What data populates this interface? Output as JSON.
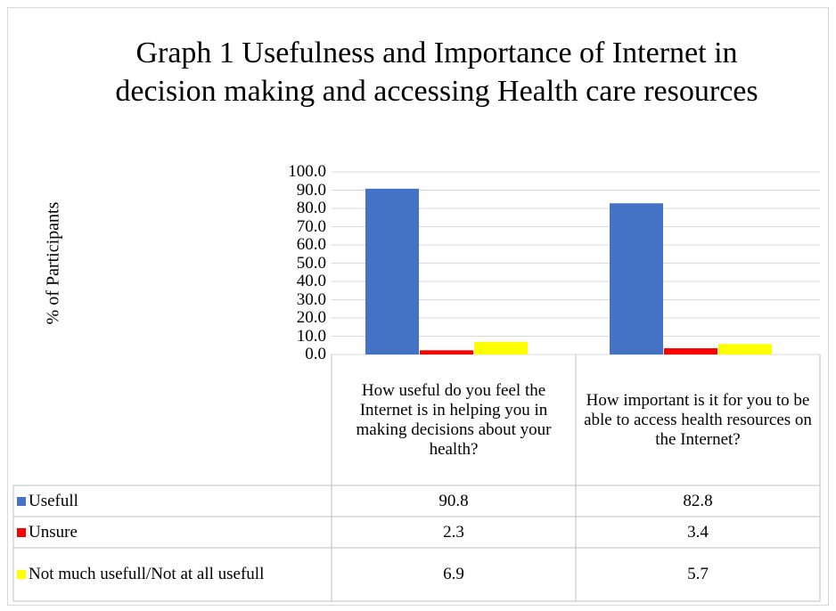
{
  "chart_data": {
    "type": "bar",
    "title": "Graph 1 Usefulness and Importance of Internet in decision making and accessing Health care resources",
    "y_label": "% of Participants",
    "categories": [
      "How useful do you feel the Internet is in helping you in making decisions about your health?",
      "How important is it for you to be able to access health resources on the Internet?"
    ],
    "series": [
      {
        "name": "Usefull",
        "color": "#4472c4",
        "values": [
          90.8,
          82.8
        ]
      },
      {
        "name": "Unsure",
        "color": "#ff0000",
        "values": [
          2.3,
          3.4
        ]
      },
      {
        "name": "Not much usefull/Not at all usefull",
        "color": "#ffff00",
        "values": [
          6.9,
          5.7
        ]
      }
    ],
    "ylim": [
      0,
      100
    ],
    "yticks": [
      {
        "value": 0,
        "label": "0.0"
      },
      {
        "value": 10,
        "label": "10.0"
      },
      {
        "value": 20,
        "label": "20.0"
      },
      {
        "value": 30,
        "label": "30.0"
      },
      {
        "value": 40,
        "label": "40.0"
      },
      {
        "value": 50,
        "label": "50.0"
      },
      {
        "value": 60,
        "label": "60.0"
      },
      {
        "value": 70,
        "label": "70.0"
      },
      {
        "value": 80,
        "label": "80.0"
      },
      {
        "value": 90,
        "label": "90.0"
      },
      {
        "value": 100,
        "label": "100.0"
      }
    ],
    "grid": true
  }
}
